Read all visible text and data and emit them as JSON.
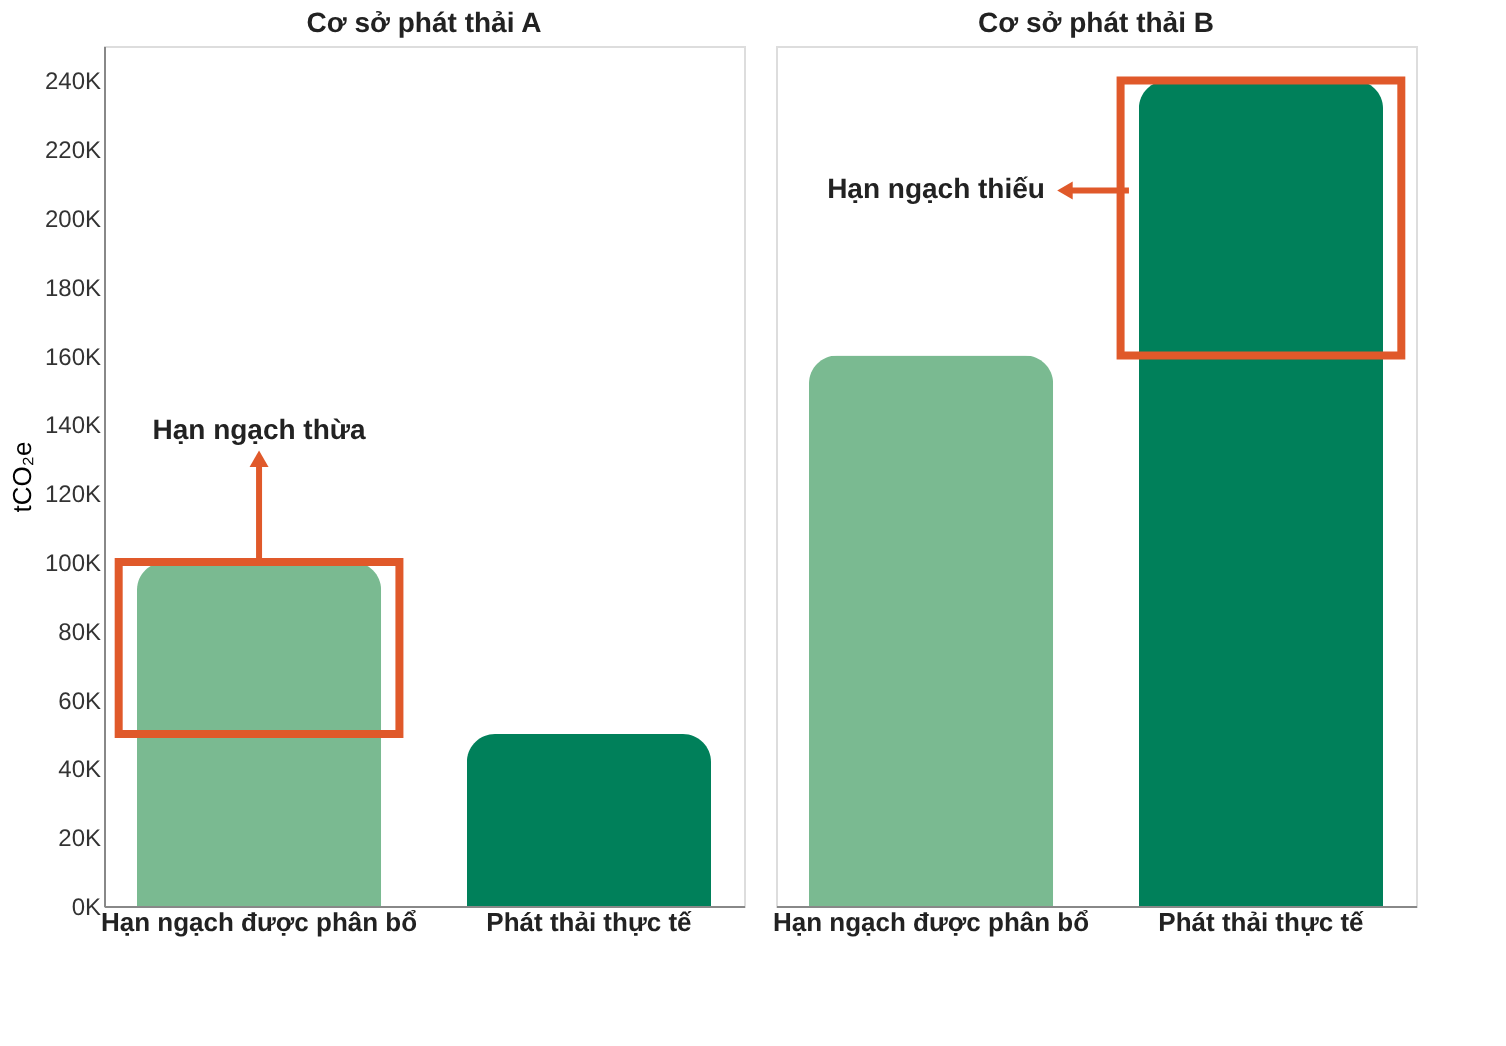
{
  "chart_data": [
    {
      "type": "bar",
      "title": "Cơ sở phát thải A",
      "ylabel": "tCO₂e",
      "categories": [
        "Hạn ngạch được phân bổ",
        "Phát thải thực tế"
      ],
      "values": [
        100000,
        50000
      ],
      "colors": [
        "#7aba91",
        "#00805a"
      ],
      "ylim": [
        0,
        250000
      ],
      "yticks": [
        {
          "value": 0,
          "label": "0K"
        },
        {
          "value": 20000,
          "label": "20K"
        },
        {
          "value": 40000,
          "label": "40K"
        },
        {
          "value": 60000,
          "label": "60K"
        },
        {
          "value": 80000,
          "label": "80K"
        },
        {
          "value": 100000,
          "label": "100K"
        },
        {
          "value": 120000,
          "label": "120K"
        },
        {
          "value": 140000,
          "label": "140K"
        },
        {
          "value": 160000,
          "label": "160K"
        },
        {
          "value": 180000,
          "label": "180K"
        },
        {
          "value": 200000,
          "label": "200K"
        },
        {
          "value": 220000,
          "label": "220K"
        },
        {
          "value": 240000,
          "label": "240K"
        }
      ],
      "annotations": [
        "Hạn ngạch thừa"
      ],
      "grid": false
    },
    {
      "type": "bar",
      "title": "Cơ sở phát thải B",
      "categories": [
        "Hạn ngạch được phân bổ",
        "Phát thải thực tế"
      ],
      "values": [
        160000,
        240000
      ],
      "colors": [
        "#7aba91",
        "#00805a"
      ],
      "ylim": [
        0,
        250000
      ],
      "tick_labels": "x",
      "annotations": [
        "Hạn ngạch thiếu"
      ],
      "grid": false
    }
  ]
}
